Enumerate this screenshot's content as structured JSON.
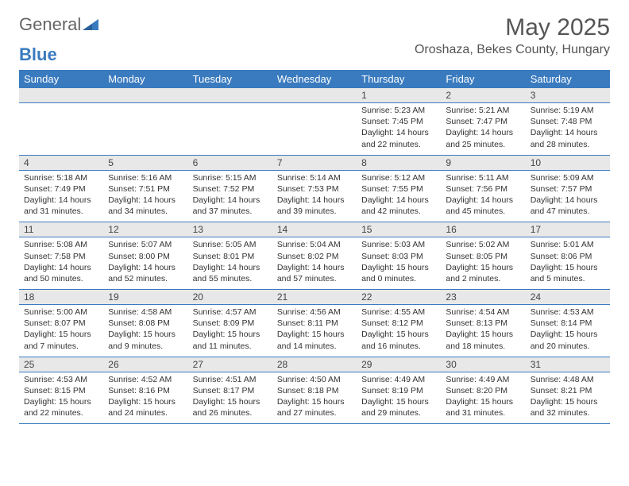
{
  "logo": {
    "text1": "General",
    "text2": "Blue"
  },
  "title": "May 2025",
  "location": "Oroshaza, Bekes County, Hungary",
  "colors": {
    "header_bg": "#3a7bbf",
    "header_text": "#ffffff",
    "daynum_bg": "#e8e8e8",
    "border": "#3a7bbf",
    "text": "#333333"
  },
  "weekdays": [
    "Sunday",
    "Monday",
    "Tuesday",
    "Wednesday",
    "Thursday",
    "Friday",
    "Saturday"
  ],
  "weeks": [
    [
      {
        "n": "",
        "sr": "",
        "ss": "",
        "dl": ""
      },
      {
        "n": "",
        "sr": "",
        "ss": "",
        "dl": ""
      },
      {
        "n": "",
        "sr": "",
        "ss": "",
        "dl": ""
      },
      {
        "n": "",
        "sr": "",
        "ss": "",
        "dl": ""
      },
      {
        "n": "1",
        "sr": "Sunrise: 5:23 AM",
        "ss": "Sunset: 7:45 PM",
        "dl": "Daylight: 14 hours and 22 minutes."
      },
      {
        "n": "2",
        "sr": "Sunrise: 5:21 AM",
        "ss": "Sunset: 7:47 PM",
        "dl": "Daylight: 14 hours and 25 minutes."
      },
      {
        "n": "3",
        "sr": "Sunrise: 5:19 AM",
        "ss": "Sunset: 7:48 PM",
        "dl": "Daylight: 14 hours and 28 minutes."
      }
    ],
    [
      {
        "n": "4",
        "sr": "Sunrise: 5:18 AM",
        "ss": "Sunset: 7:49 PM",
        "dl": "Daylight: 14 hours and 31 minutes."
      },
      {
        "n": "5",
        "sr": "Sunrise: 5:16 AM",
        "ss": "Sunset: 7:51 PM",
        "dl": "Daylight: 14 hours and 34 minutes."
      },
      {
        "n": "6",
        "sr": "Sunrise: 5:15 AM",
        "ss": "Sunset: 7:52 PM",
        "dl": "Daylight: 14 hours and 37 minutes."
      },
      {
        "n": "7",
        "sr": "Sunrise: 5:14 AM",
        "ss": "Sunset: 7:53 PM",
        "dl": "Daylight: 14 hours and 39 minutes."
      },
      {
        "n": "8",
        "sr": "Sunrise: 5:12 AM",
        "ss": "Sunset: 7:55 PM",
        "dl": "Daylight: 14 hours and 42 minutes."
      },
      {
        "n": "9",
        "sr": "Sunrise: 5:11 AM",
        "ss": "Sunset: 7:56 PM",
        "dl": "Daylight: 14 hours and 45 minutes."
      },
      {
        "n": "10",
        "sr": "Sunrise: 5:09 AM",
        "ss": "Sunset: 7:57 PM",
        "dl": "Daylight: 14 hours and 47 minutes."
      }
    ],
    [
      {
        "n": "11",
        "sr": "Sunrise: 5:08 AM",
        "ss": "Sunset: 7:58 PM",
        "dl": "Daylight: 14 hours and 50 minutes."
      },
      {
        "n": "12",
        "sr": "Sunrise: 5:07 AM",
        "ss": "Sunset: 8:00 PM",
        "dl": "Daylight: 14 hours and 52 minutes."
      },
      {
        "n": "13",
        "sr": "Sunrise: 5:05 AM",
        "ss": "Sunset: 8:01 PM",
        "dl": "Daylight: 14 hours and 55 minutes."
      },
      {
        "n": "14",
        "sr": "Sunrise: 5:04 AM",
        "ss": "Sunset: 8:02 PM",
        "dl": "Daylight: 14 hours and 57 minutes."
      },
      {
        "n": "15",
        "sr": "Sunrise: 5:03 AM",
        "ss": "Sunset: 8:03 PM",
        "dl": "Daylight: 15 hours and 0 minutes."
      },
      {
        "n": "16",
        "sr": "Sunrise: 5:02 AM",
        "ss": "Sunset: 8:05 PM",
        "dl": "Daylight: 15 hours and 2 minutes."
      },
      {
        "n": "17",
        "sr": "Sunrise: 5:01 AM",
        "ss": "Sunset: 8:06 PM",
        "dl": "Daylight: 15 hours and 5 minutes."
      }
    ],
    [
      {
        "n": "18",
        "sr": "Sunrise: 5:00 AM",
        "ss": "Sunset: 8:07 PM",
        "dl": "Daylight: 15 hours and 7 minutes."
      },
      {
        "n": "19",
        "sr": "Sunrise: 4:58 AM",
        "ss": "Sunset: 8:08 PM",
        "dl": "Daylight: 15 hours and 9 minutes."
      },
      {
        "n": "20",
        "sr": "Sunrise: 4:57 AM",
        "ss": "Sunset: 8:09 PM",
        "dl": "Daylight: 15 hours and 11 minutes."
      },
      {
        "n": "21",
        "sr": "Sunrise: 4:56 AM",
        "ss": "Sunset: 8:11 PM",
        "dl": "Daylight: 15 hours and 14 minutes."
      },
      {
        "n": "22",
        "sr": "Sunrise: 4:55 AM",
        "ss": "Sunset: 8:12 PM",
        "dl": "Daylight: 15 hours and 16 minutes."
      },
      {
        "n": "23",
        "sr": "Sunrise: 4:54 AM",
        "ss": "Sunset: 8:13 PM",
        "dl": "Daylight: 15 hours and 18 minutes."
      },
      {
        "n": "24",
        "sr": "Sunrise: 4:53 AM",
        "ss": "Sunset: 8:14 PM",
        "dl": "Daylight: 15 hours and 20 minutes."
      }
    ],
    [
      {
        "n": "25",
        "sr": "Sunrise: 4:53 AM",
        "ss": "Sunset: 8:15 PM",
        "dl": "Daylight: 15 hours and 22 minutes."
      },
      {
        "n": "26",
        "sr": "Sunrise: 4:52 AM",
        "ss": "Sunset: 8:16 PM",
        "dl": "Daylight: 15 hours and 24 minutes."
      },
      {
        "n": "27",
        "sr": "Sunrise: 4:51 AM",
        "ss": "Sunset: 8:17 PM",
        "dl": "Daylight: 15 hours and 26 minutes."
      },
      {
        "n": "28",
        "sr": "Sunrise: 4:50 AM",
        "ss": "Sunset: 8:18 PM",
        "dl": "Daylight: 15 hours and 27 minutes."
      },
      {
        "n": "29",
        "sr": "Sunrise: 4:49 AM",
        "ss": "Sunset: 8:19 PM",
        "dl": "Daylight: 15 hours and 29 minutes."
      },
      {
        "n": "30",
        "sr": "Sunrise: 4:49 AM",
        "ss": "Sunset: 8:20 PM",
        "dl": "Daylight: 15 hours and 31 minutes."
      },
      {
        "n": "31",
        "sr": "Sunrise: 4:48 AM",
        "ss": "Sunset: 8:21 PM",
        "dl": "Daylight: 15 hours and 32 minutes."
      }
    ]
  ]
}
